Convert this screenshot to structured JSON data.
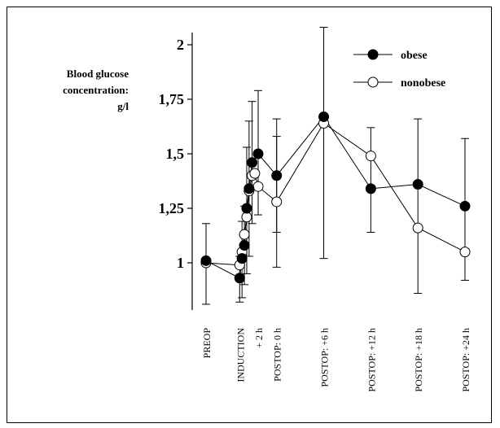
{
  "chart_data": {
    "type": "line",
    "ylabel": [
      "Blood glucose",
      "concentration:",
      "g/l"
    ],
    "ylim": [
      0.8,
      2.1
    ],
    "y_ticks": [
      {
        "value": 1,
        "label": "1"
      },
      {
        "value": 1.25,
        "label": "1,25"
      },
      {
        "value": 1.5,
        "label": "1,5"
      },
      {
        "value": 1.75,
        "label": "1,75"
      },
      {
        "value": 2,
        "label": "2"
      }
    ],
    "x_ticks": [
      {
        "t": 0,
        "label": "PREOP"
      },
      {
        "t": 10,
        "label": "INDUCTION"
      },
      {
        "t": 15.5,
        "label": "+ 2 h"
      },
      {
        "t": 21,
        "label": "POSTOP: 0 h"
      },
      {
        "t": 35,
        "label": "POSTOP: +6 h"
      },
      {
        "t": 49,
        "label": "POSTOP: +12 h"
      },
      {
        "t": 63,
        "label": "POSTOP: +18 h"
      },
      {
        "t": 77,
        "label": "POSTOP: +24 h"
      }
    ],
    "grid": false,
    "legend_position": "top-right",
    "series": [
      {
        "name": "obese",
        "marker": "filled-circle",
        "color": "#000000",
        "points": [
          {
            "t": 0,
            "y": 1.01,
            "lo": 0.81,
            "hi": 1.18
          },
          {
            "t": 10,
            "y": 0.93,
            "lo": 0.82,
            "hi": 1.03
          },
          {
            "t": 10.7,
            "y": 1.02,
            "lo": 0.84,
            "hi": 1.19
          },
          {
            "t": 11.4,
            "y": 1.08,
            "lo": 0.9,
            "hi": 1.26
          },
          {
            "t": 12.1,
            "y": 1.25,
            "lo": 0.95,
            "hi": 1.53
          },
          {
            "t": 12.8,
            "y": 1.34,
            "lo": 1.03,
            "hi": 1.65
          },
          {
            "t": 13.7,
            "y": 1.46,
            "lo": 1.18,
            "hi": 1.74
          },
          {
            "t": 15.5,
            "y": 1.5,
            "lo": 1.22,
            "hi": 1.79
          },
          {
            "t": 21,
            "y": 1.4,
            "lo": 1.14,
            "hi": 1.66
          },
          {
            "t": 35,
            "y": 1.67,
            "lo": 1.02,
            "hi": 2.08
          },
          {
            "t": 49,
            "y": 1.34,
            "lo": 1.14,
            "hi": 1.62
          },
          {
            "t": 63,
            "y": 1.36,
            "lo": 0.86,
            "hi": 1.66
          },
          {
            "t": 77,
            "y": 1.26,
            "lo": 0.92,
            "hi": 1.57
          }
        ]
      },
      {
        "name": "nonobese",
        "marker": "open-circle",
        "color": "#000000",
        "points": [
          {
            "t": 0,
            "y": 1.0
          },
          {
            "t": 10,
            "y": 0.99
          },
          {
            "t": 10.7,
            "y": 1.05
          },
          {
            "t": 11.4,
            "y": 1.13
          },
          {
            "t": 12.1,
            "y": 1.21
          },
          {
            "t": 12.8,
            "y": 1.33
          },
          {
            "t": 13.7,
            "y": 1.4
          },
          {
            "t": 14.5,
            "y": 1.41
          },
          {
            "t": 15.5,
            "y": 1.35
          },
          {
            "t": 21,
            "y": 1.28,
            "lo": 0.98,
            "hi": 1.58
          },
          {
            "t": 35,
            "y": 1.64
          },
          {
            "t": 49,
            "y": 1.49
          },
          {
            "t": 63,
            "y": 1.16
          },
          {
            "t": 77,
            "y": 1.05
          }
        ]
      }
    ]
  }
}
